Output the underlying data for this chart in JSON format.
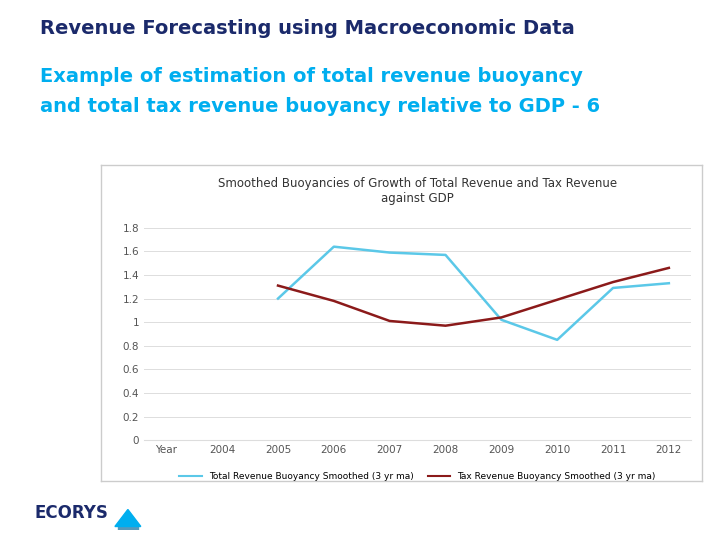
{
  "title_main": "Revenue Forecasting using Macroeconomic Data",
  "title_sub_line1": "Example of estimation of total revenue buoyancy",
  "title_sub_line2": "and total tax revenue buoyancy relative to GDP - 6",
  "chart_title": "Smoothed Buoyancies of Growth of Total Revenue and Tax Revenue\nagainst GDP",
  "x_labels": [
    "Year",
    "2004",
    "2005",
    "2006",
    "2007",
    "2008",
    "2009",
    "2010",
    "2011",
    "2012"
  ],
  "y_total": [
    null,
    null,
    1.2,
    1.64,
    1.59,
    1.57,
    1.02,
    0.85,
    1.29,
    1.33
  ],
  "y_tax_x": [
    2,
    3,
    4,
    5,
    6,
    8,
    9
  ],
  "y_tax_y": [
    1.31,
    1.18,
    1.01,
    0.97,
    1.04,
    1.34,
    1.46
  ],
  "color_total": "#5BC8E8",
  "color_tax": "#8B1A1A",
  "ylim": [
    0,
    1.9
  ],
  "yticks": [
    0,
    0.2,
    0.4,
    0.6,
    0.8,
    1.0,
    1.2,
    1.4,
    1.6,
    1.8
  ],
  "legend_total": "Total Revenue Buoyancy Smoothed (3 yr ma)",
  "legend_tax": "Tax Revenue Buoyancy Smoothed (3 yr ma)",
  "title_main_color": "#1B2A6B",
  "title_sub_color": "#00AEEF",
  "bg_color": "#FFFFFF",
  "chart_border_color": "#CCCCCC",
  "grid_color": "#DDDDDD",
  "tick_color": "#555555",
  "logo_text": "ECORYS",
  "logo_color": "#1B2A6B",
  "logo_triangle_color": "#00AEEF"
}
